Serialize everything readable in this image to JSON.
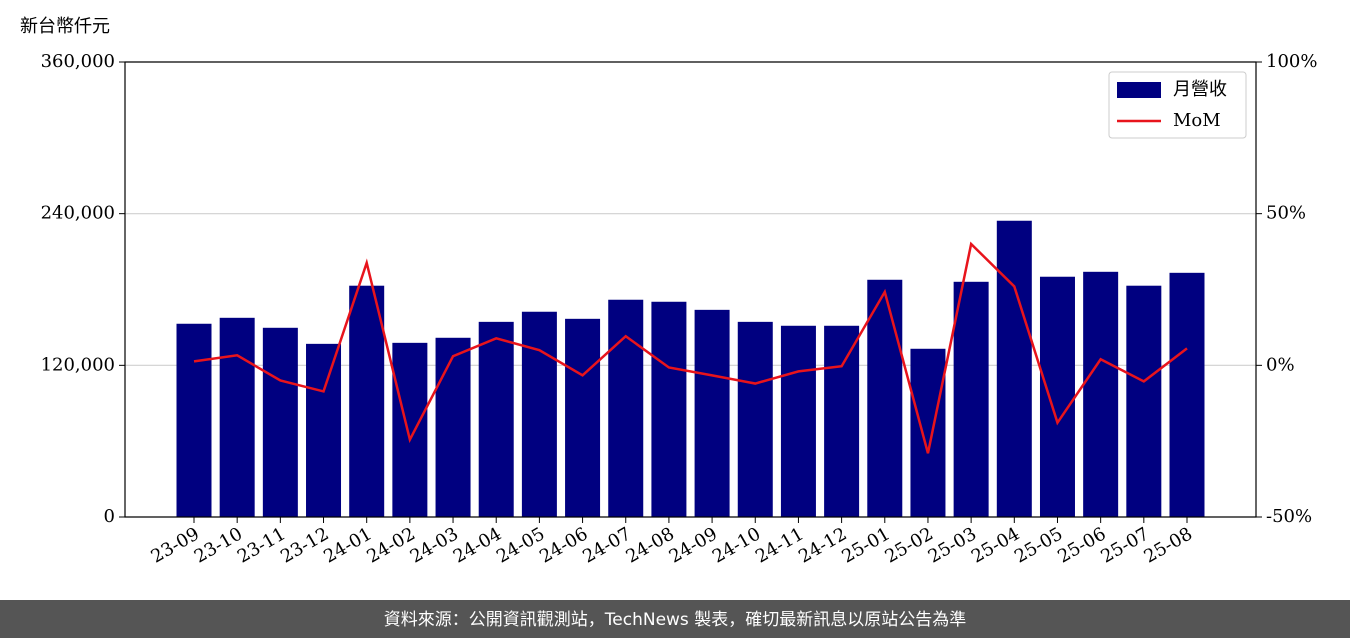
{
  "chart_data": {
    "type": "bar-line",
    "y_label": "新台幣仟元",
    "categories": [
      "23-09",
      "23-10",
      "23-11",
      "23-12",
      "24-01",
      "24-02",
      "24-03",
      "24-04",
      "24-05",
      "24-06",
      "24-07",
      "24-08",
      "24-09",
      "24-10",
      "24-11",
      "24-12",
      "25-01",
      "25-02",
      "25-03",
      "25-04",
      "25-05",
      "25-06",
      "25-07",
      "25-08"
    ],
    "series": [
      {
        "name": "月營收",
        "type": "bar",
        "color": "#000080",
        "values": [
          152900,
          157600,
          149700,
          137000,
          183000,
          137800,
          141800,
          154400,
          162400,
          156800,
          171900,
          170300,
          163900,
          154400,
          151300,
          151300,
          187700,
          133100,
          186100,
          234400,
          190100,
          194000,
          183000,
          193200
        ]
      },
      {
        "name": "MoM",
        "type": "line",
        "axis": "y2",
        "color": "#e8141c",
        "values": [
          1.3,
          3.3,
          -5,
          -8.6,
          33.8,
          -24.5,
          3,
          8.9,
          5,
          -3.3,
          9.6,
          -0.7,
          -3.3,
          -6,
          -2,
          -0.3,
          24.2,
          -29,
          40,
          26,
          -18.9,
          2,
          -5.3,
          5.6
        ]
      }
    ],
    "ylim": [
      0,
      360000
    ],
    "yticks": [
      0,
      {
        "value": 120000,
        "label": "120,000"
      },
      {
        "value": 240000,
        "label": "240,000"
      },
      {
        "value": 360000,
        "label": "360,000"
      }
    ],
    "y2lim": [
      -50,
      100
    ],
    "y2ticks": [
      {
        "value": -50,
        "label": "-50%"
      },
      {
        "value": 0,
        "label": "0%"
      },
      {
        "value": 50,
        "label": "50%"
      },
      {
        "value": 100,
        "label": "100%"
      }
    ],
    "grid": true,
    "legend": "upper right"
  },
  "footer": "資料來源：公開資訊觀測站，TechNews 製表，確切最新訊息以原站公告為準"
}
